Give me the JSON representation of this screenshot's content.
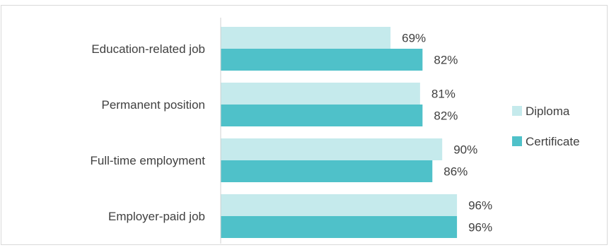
{
  "chart_data": {
    "type": "bar",
    "orientation": "horizontal",
    "categories": [
      "Education-related job",
      "Permanent position",
      "Full-time employment",
      "Employer-paid job"
    ],
    "series": [
      {
        "name": "Diploma",
        "values": [
          69,
          81,
          90,
          96
        ],
        "color": "#c5eaec"
      },
      {
        "name": "Certificate",
        "values": [
          82,
          82,
          86,
          96
        ],
        "color": "#4fc1c9"
      }
    ],
    "value_suffix": "%",
    "xlim": [
      0,
      100
    ],
    "grid": false,
    "legend_position": "right",
    "border_color": "#d9d9d9",
    "axis_color": "#d0d0d0"
  }
}
